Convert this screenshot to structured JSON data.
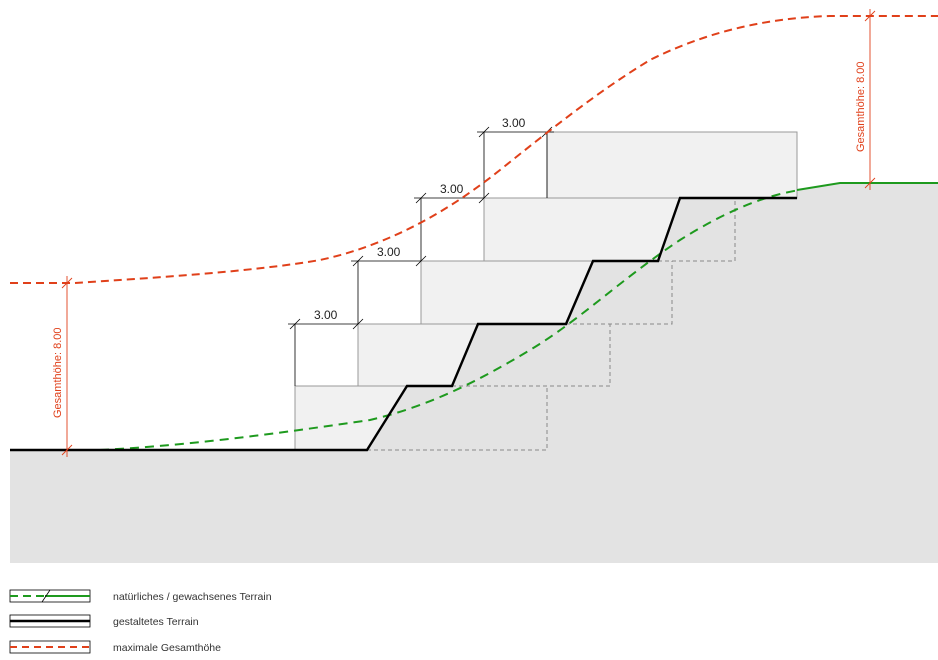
{
  "dimensions": {
    "step_width_labels": [
      "3.00",
      "3.00",
      "3.00",
      "3.00"
    ],
    "total_height_left": "Gesamthöhe: 8.00",
    "total_height_right": "Gesamthöhe: 8.00"
  },
  "legend": {
    "natural_terrain": "natürliches / gewachsenes Terrain",
    "shaped_terrain": "gestaltetes Terrain",
    "max_height": "maximale Gesamthöhe"
  },
  "colors": {
    "green": "#1e9a1e",
    "red": "#e0401a",
    "ground": "#e3e3e3",
    "block": "#f1f1f1",
    "black": "#000000"
  }
}
